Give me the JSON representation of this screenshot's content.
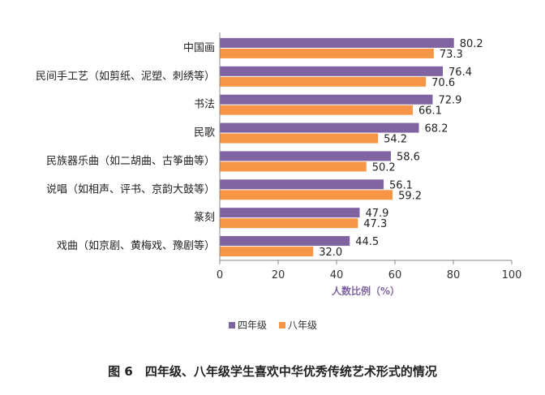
{
  "chart_data": {
    "type": "bar",
    "orientation": "horizontal",
    "title": "图 6　四年级、八年级学生喜欢中华优秀传统艺术形式的情况",
    "xlabel": "人数比例（%）",
    "ylabel": "",
    "xlim": [
      0,
      100
    ],
    "xticks": [
      0,
      20,
      40,
      60,
      80,
      100
    ],
    "grid": false,
    "legend_position": "bottom",
    "categories": [
      "中国画",
      "民间手工艺（如剪纸、泥塑、刺绣等）",
      "书法",
      "民歌",
      "民族器乐曲（如二胡曲、古筝曲等）",
      "说唱（如相声、评书、京韵大鼓等）",
      "篆刻",
      "戏曲（如京剧、黄梅戏、豫剧等）"
    ],
    "series": [
      {
        "name": "四年级",
        "color": "#8064A2",
        "values": [
          80.2,
          76.4,
          72.9,
          68.2,
          58.6,
          56.1,
          47.9,
          44.5
        ],
        "labels": [
          "80.2",
          "76.4",
          "72.9",
          "68.2",
          "58.6",
          "56.1",
          "47.9",
          "44.5"
        ]
      },
      {
        "name": "八年级",
        "color": "#F79646",
        "values": [
          73.3,
          70.6,
          66.1,
          54.2,
          50.2,
          59.2,
          47.3,
          32.0
        ],
        "labels": [
          "73.3",
          "70.6",
          "66.1",
          "54.2",
          "50.2",
          "59.2",
          "47.3",
          "32.0"
        ]
      }
    ]
  }
}
